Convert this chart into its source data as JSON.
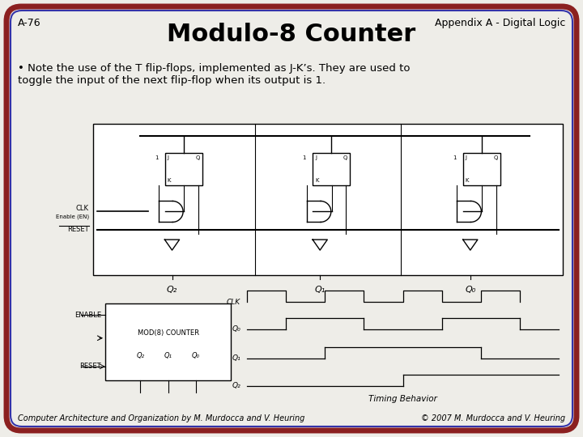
{
  "slide_bg": "#eeede8",
  "border_outer_color": "#8B2020",
  "border_inner_color": "#3333aa",
  "border_outer_lw": 5,
  "border_inner_lw": 1.5,
  "header_label_left": "A-76",
  "header_label_right": "Appendix A - Digital Logic",
  "header_font_size": 9,
  "title": "Modulo-8 Counter",
  "title_font_size": 22,
  "title_font_weight": "bold",
  "bullet_text_line1": "• Note the use of the T flip-flops, implemented as J-K’s. They are used to",
  "bullet_text_line2": "toggle the input of the next flip-flop when its output is 1.",
  "bullet_font_size": 9.5,
  "footer_left": "Computer Architecture and Organization by M. Murdocca and V. Heuring",
  "footer_right": "© 2007 M. Murdocca and V. Heuring",
  "footer_font_size": 7,
  "fig_width": 7.2,
  "fig_height": 5.4,
  "dpi": 100
}
